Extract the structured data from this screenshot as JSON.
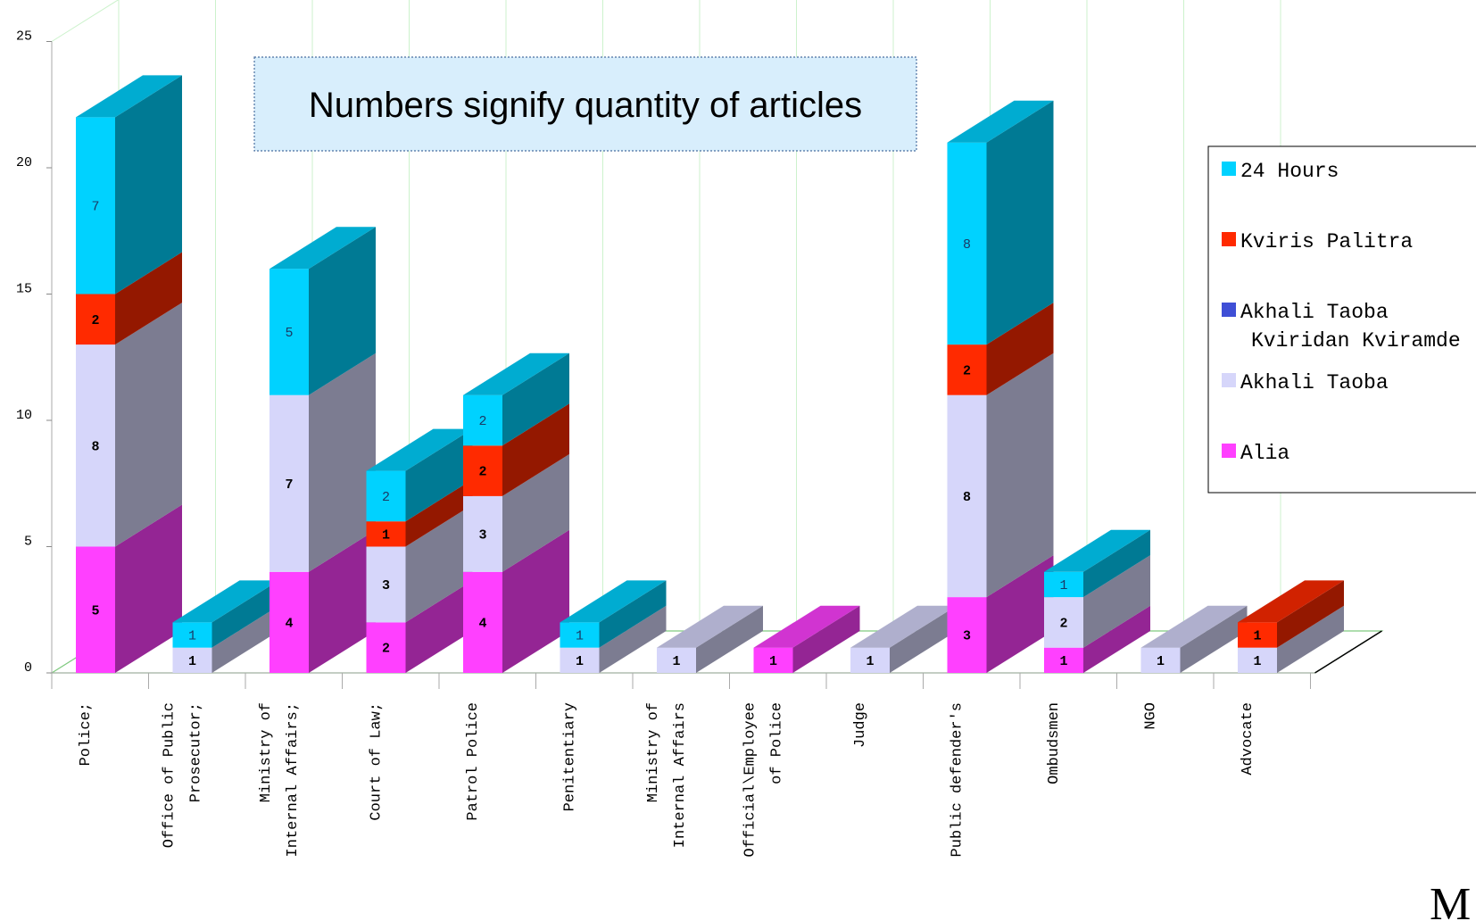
{
  "chart_data": {
    "type": "bar",
    "stacked": true,
    "three_d": true,
    "annotation": "Numbers signify quantity of articles",
    "ylim": [
      0,
      25
    ],
    "yticks": [
      "0",
      "5",
      "10",
      "15",
      "20",
      "25"
    ],
    "grid": true,
    "legend_position": "right",
    "categories": [
      [
        "Police;"
      ],
      [
        "Office of Public",
        "Prosecutor;"
      ],
      [
        "Ministry of",
        "Internal Affairs;"
      ],
      [
        "Court of Law;"
      ],
      [
        "Patrol Police"
      ],
      [
        "Penitentiary"
      ],
      [
        "Ministry of",
        "Internal Affairs"
      ],
      [
        "Official\\Employee",
        "of Police"
      ],
      [
        "Judge"
      ],
      [
        "Public defender's"
      ],
      [
        "Ombudsmen"
      ],
      [
        "NGO"
      ],
      [
        "Advocate"
      ]
    ],
    "series": [
      {
        "name": "Alia",
        "color": "#ff40ff",
        "values": [
          5,
          0,
          4,
          2,
          4,
          0,
          0,
          1,
          0,
          3,
          1,
          0,
          0
        ]
      },
      {
        "name": "Akhali Taoba",
        "color": "#d6d6fa",
        "values": [
          8,
          1,
          7,
          3,
          3,
          1,
          1,
          0,
          1,
          8,
          2,
          1,
          1
        ]
      },
      {
        "name": "Akhali Taoba Kviridan Kviramde",
        "color": "#3f4fd6",
        "values": [
          0,
          0,
          0,
          0,
          0,
          0,
          0,
          0,
          0,
          0,
          0,
          0,
          0
        ]
      },
      {
        "name": "Kviris Palitra",
        "color": "#ff2a00",
        "values": [
          2,
          0,
          0,
          1,
          2,
          0,
          0,
          0,
          0,
          2,
          0,
          0,
          1
        ]
      },
      {
        "name": "24 Hours",
        "color": "#00d2ff",
        "values": [
          7,
          1,
          5,
          2,
          2,
          1,
          0,
          0,
          0,
          8,
          1,
          0,
          0
        ]
      }
    ],
    "legend": [
      {
        "lines": [
          "24 Hours"
        ],
        "color": "#00d2ff"
      },
      {
        "lines": [
          "Kviris Palitra"
        ],
        "color": "#ff2a00"
      },
      {
        "lines": [
          "Akhali Taoba",
          "Kviridan Kviramde"
        ],
        "color": "#3f4fd6"
      },
      {
        "lines": [
          "Akhali Taoba"
        ],
        "color": "#d6d6fa"
      },
      {
        "lines": [
          "Alia"
        ],
        "color": "#ff40ff"
      }
    ],
    "corner_text": "M"
  }
}
